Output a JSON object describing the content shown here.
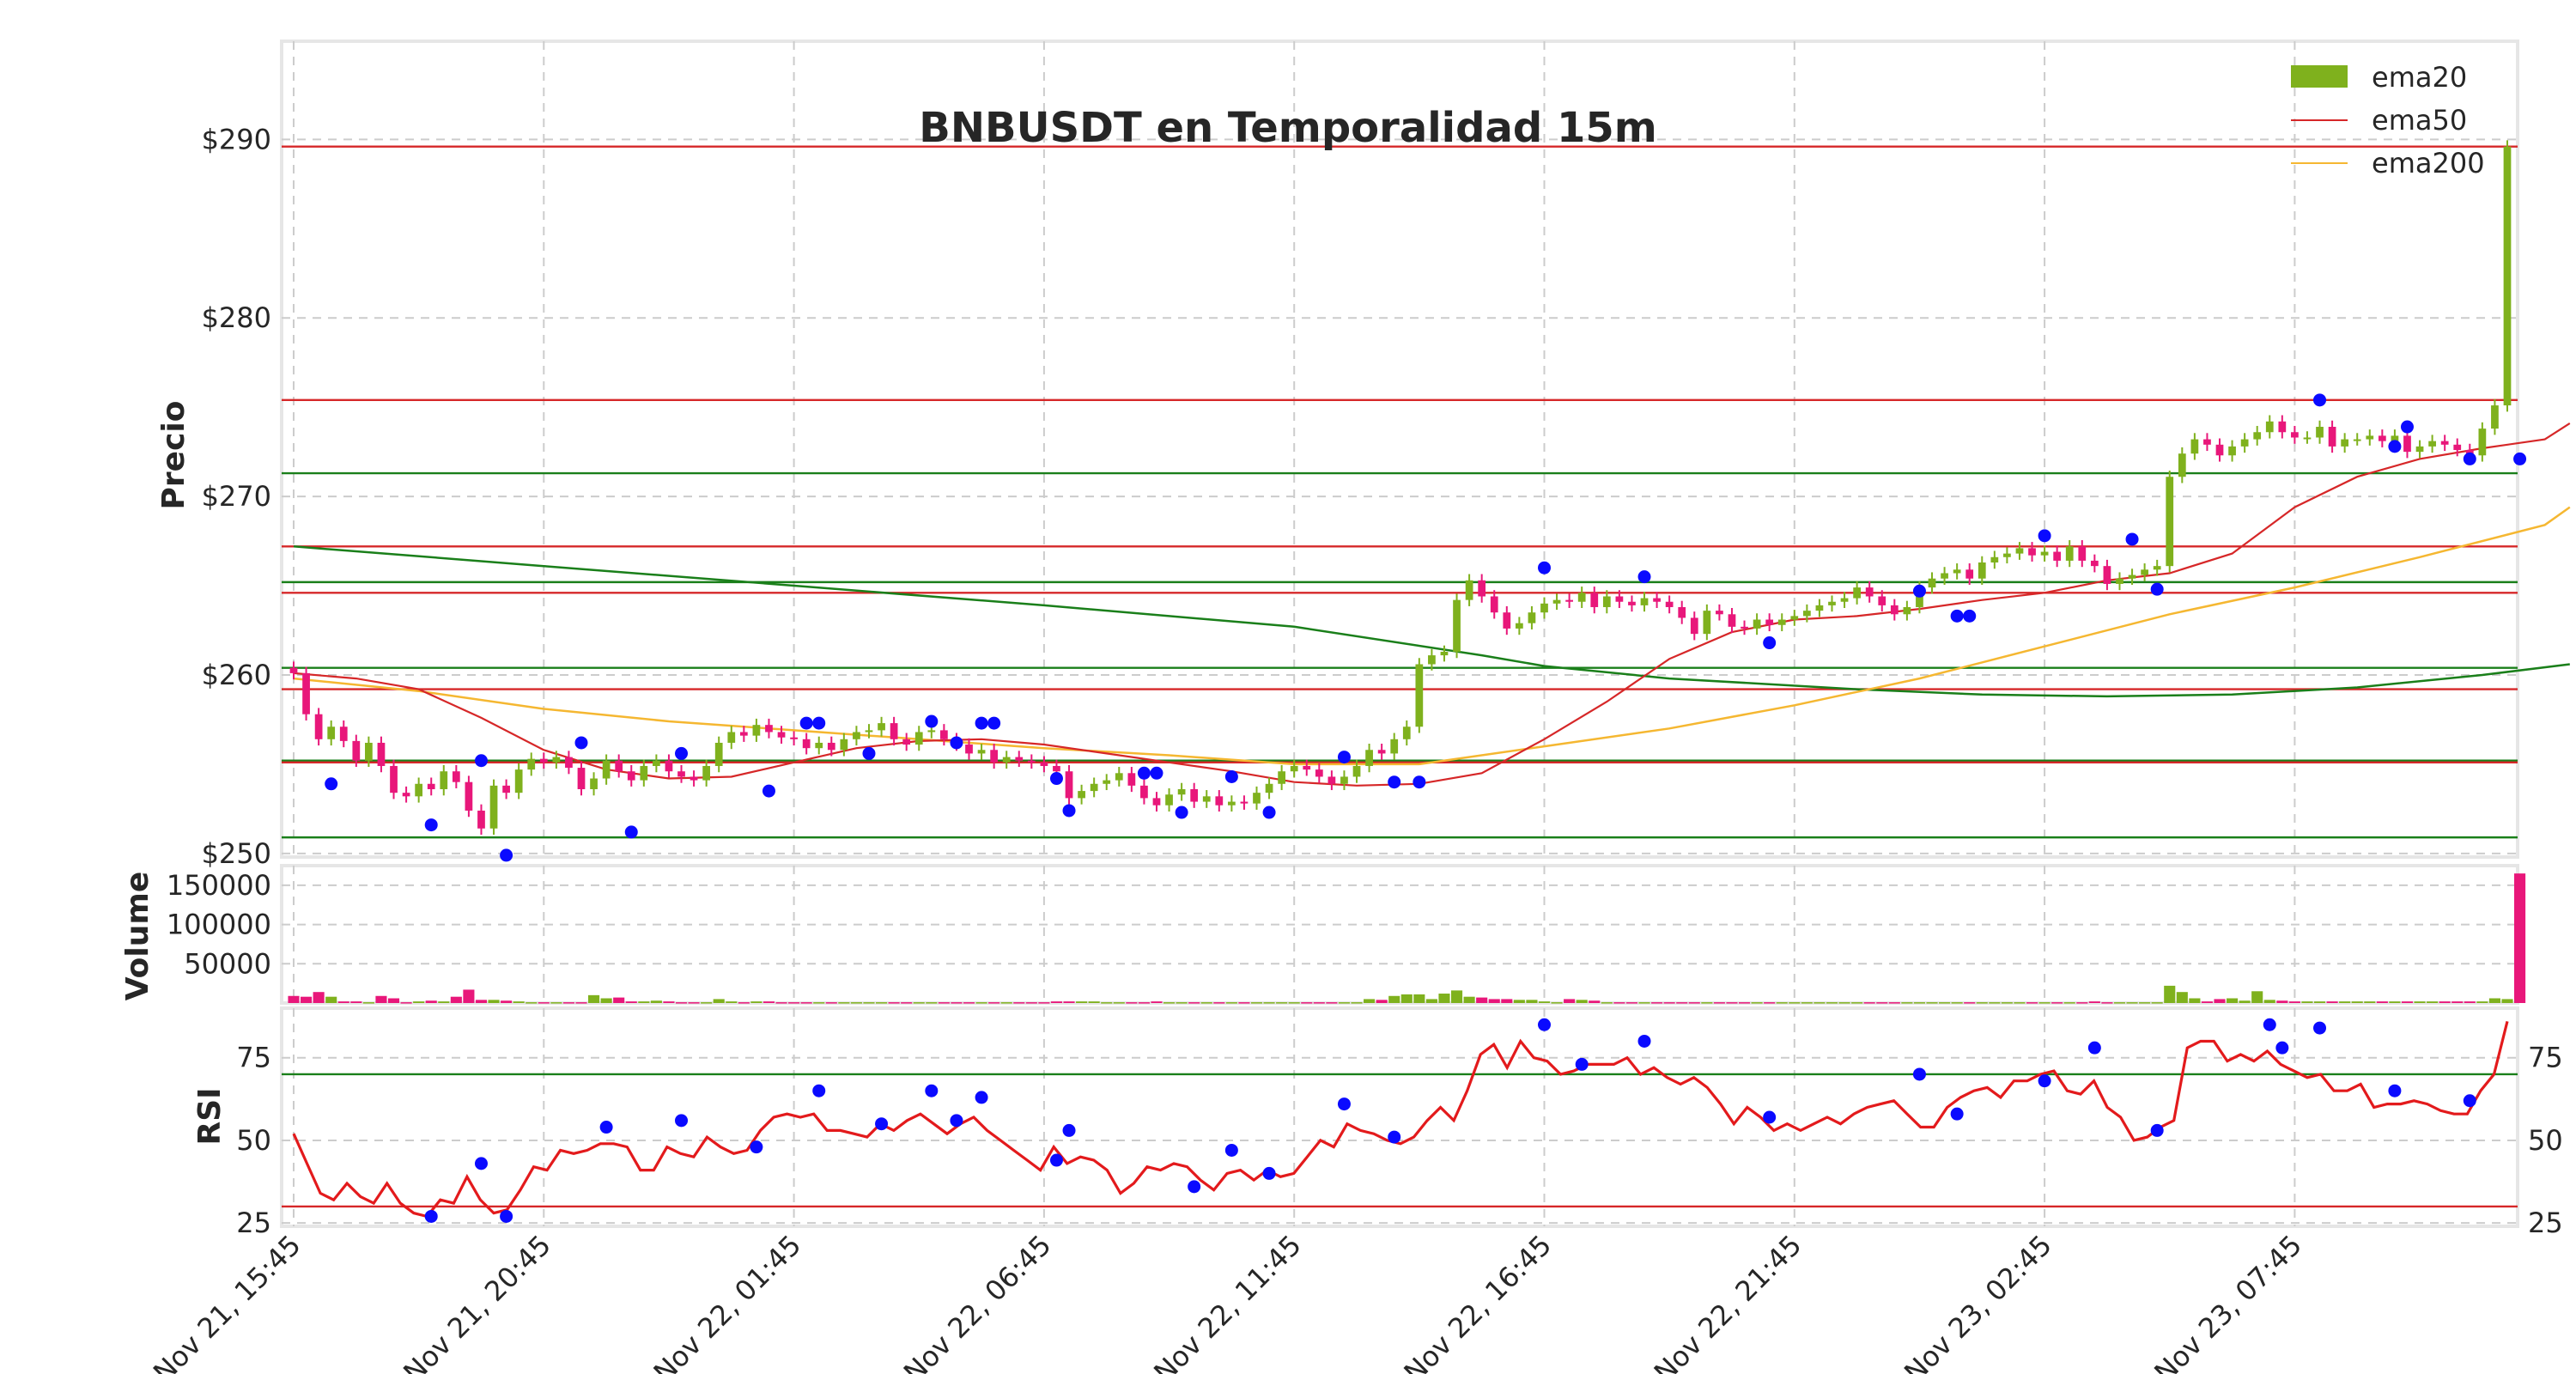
{
  "chart_data": {
    "type": "candlestick",
    "title": "BNBUSDT en Temporalidad 15m",
    "interval_minutes": 15,
    "x_tick_labels": [
      "Nov 21, 15:45",
      "Nov 21, 20:45",
      "Nov 22, 01:45",
      "Nov 22, 06:45",
      "Nov 22, 11:45",
      "Nov 22, 16:45",
      "Nov 22, 21:45",
      "Nov 23, 02:45",
      "Nov 23, 07:45"
    ],
    "candles_per_tick": 20,
    "price_panel": {
      "ylabel": "Precio",
      "ylim": [
        249.8,
        295.5
      ],
      "yticks": [
        250,
        260,
        270,
        280,
        290
      ],
      "ytick_labels": [
        "$250",
        "$260",
        "$270",
        "$280",
        "$290"
      ],
      "closes": [
        260.1,
        257.8,
        256.4,
        257.1,
        256.3,
        255.2,
        256.2,
        254.9,
        253.4,
        253.2,
        253.9,
        253.6,
        254.6,
        254.0,
        252.4,
        251.4,
        253.8,
        253.4,
        254.7,
        255.3,
        255.1,
        255.4,
        254.8,
        253.6,
        254.2,
        255.2,
        254.6,
        254.1,
        254.9,
        255.2,
        254.6,
        254.3,
        254.1,
        254.9,
        256.2,
        256.8,
        256.6,
        257.2,
        256.8,
        256.5,
        256.4,
        255.9,
        256.2,
        255.8,
        256.4,
        256.8,
        256.9,
        257.3,
        256.4,
        256.1,
        256.8,
        256.9,
        256.4,
        256.1,
        255.6,
        255.8,
        255.1,
        255.4,
        255.2,
        255.1,
        254.9,
        254.6,
        253.1,
        253.5,
        253.9,
        254.1,
        254.5,
        253.8,
        253.1,
        252.7,
        253.3,
        253.6,
        252.9,
        253.2,
        252.7,
        252.9,
        252.8,
        253.4,
        253.9,
        254.6,
        254.9,
        254.7,
        254.3,
        253.9,
        254.3,
        254.9,
        255.8,
        255.6,
        256.4,
        257.1,
        260.6,
        261.1,
        261.3,
        264.2,
        265.3,
        264.4,
        263.5,
        262.6,
        262.9,
        263.5,
        264.0,
        264.2,
        264.1,
        264.6,
        263.8,
        264.4,
        264.1,
        263.9,
        264.3,
        264.1,
        263.8,
        263.2,
        262.3,
        263.6,
        263.4,
        262.7,
        262.6,
        263.1,
        262.8,
        263.1,
        263.3,
        263.6,
        263.9,
        264.1,
        264.3,
        264.9,
        264.4,
        263.9,
        263.4,
        263.8,
        264.9,
        265.4,
        265.7,
        265.9,
        265.4,
        266.3,
        266.6,
        266.8,
        267.1,
        266.7,
        266.9,
        266.4,
        267.2,
        266.4,
        266.1,
        265.1,
        265.4,
        265.6,
        265.9,
        266.1,
        271.1,
        272.4,
        273.2,
        272.9,
        272.3,
        272.8,
        273.2,
        273.6,
        274.2,
        273.6,
        273.3,
        273.3,
        273.9,
        272.8,
        273.2,
        273.2,
        273.4,
        273.1,
        273.4,
        272.5,
        272.8,
        273.1,
        272.9,
        272.6,
        272.3,
        273.8,
        275.1,
        289.6
      ],
      "ema20_last": 274.1,
      "ema50": [
        [
          0,
          260.1
        ],
        [
          5,
          259.8
        ],
        [
          10,
          259.2
        ],
        [
          15,
          257.6
        ],
        [
          20,
          255.8
        ],
        [
          25,
          254.7
        ],
        [
          30,
          254.2
        ],
        [
          35,
          254.3
        ],
        [
          40,
          255.1
        ],
        [
          45,
          255.9
        ],
        [
          50,
          256.3
        ],
        [
          55,
          256.4
        ],
        [
          60,
          256.1
        ],
        [
          65,
          255.6
        ],
        [
          70,
          255.1
        ],
        [
          75,
          254.6
        ],
        [
          80,
          254.0
        ],
        [
          85,
          253.8
        ],
        [
          90,
          253.9
        ],
        [
          95,
          254.5
        ],
        [
          100,
          256.4
        ],
        [
          105,
          258.5
        ],
        [
          110,
          260.9
        ],
        [
          115,
          262.4
        ],
        [
          120,
          263.1
        ],
        [
          125,
          263.3
        ],
        [
          130,
          263.7
        ],
        [
          135,
          264.2
        ],
        [
          140,
          264.6
        ],
        [
          145,
          265.3
        ],
        [
          150,
          265.7
        ],
        [
          155,
          266.8
        ],
        [
          160,
          269.4
        ],
        [
          165,
          271.1
        ],
        [
          170,
          272.1
        ],
        [
          175,
          272.7
        ],
        [
          180,
          273.2
        ],
        [
          182,
          274.1
        ]
      ],
      "ema200": [
        [
          0,
          259.8
        ],
        [
          10,
          259.1
        ],
        [
          20,
          258.1
        ],
        [
          30,
          257.4
        ],
        [
          40,
          256.9
        ],
        [
          50,
          256.4
        ],
        [
          60,
          255.9
        ],
        [
          70,
          255.5
        ],
        [
          80,
          255.0
        ],
        [
          90,
          255.0
        ],
        [
          100,
          256.0
        ],
        [
          110,
          257.0
        ],
        [
          120,
          258.3
        ],
        [
          130,
          259.8
        ],
        [
          140,
          261.6
        ],
        [
          150,
          263.4
        ],
        [
          160,
          264.9
        ],
        [
          170,
          266.6
        ],
        [
          180,
          268.4
        ],
        [
          182,
          269.4
        ]
      ],
      "green_curve": [
        [
          0,
          267.2
        ],
        [
          20,
          266.1
        ],
        [
          40,
          265.0
        ],
        [
          60,
          263.9
        ],
        [
          80,
          262.7
        ],
        [
          95,
          261.1
        ],
        [
          100,
          260.5
        ],
        [
          110,
          259.8
        ],
        [
          125,
          259.2
        ],
        [
          135,
          258.9
        ],
        [
          145,
          258.8
        ],
        [
          155,
          258.9
        ],
        [
          165,
          259.3
        ],
        [
          175,
          260.0
        ],
        [
          182,
          260.6
        ]
      ],
      "horizontal_lines": [
        {
          "value": 289.6,
          "color": "#d62728"
        },
        {
          "value": 275.4,
          "color": "#d62728"
        },
        {
          "value": 271.3,
          "color": "#1a7f1a"
        },
        {
          "value": 267.2,
          "color": "#d62728"
        },
        {
          "value": 265.2,
          "color": "#1a7f1a"
        },
        {
          "value": 264.6,
          "color": "#d62728"
        },
        {
          "value": 260.4,
          "color": "#1a7f1a"
        },
        {
          "value": 259.2,
          "color": "#d62728"
        },
        {
          "value": 255.2,
          "color": "#1a7f1a"
        },
        {
          "value": 255.1,
          "color": "#d62728"
        },
        {
          "value": 250.9,
          "color": "#1a7f1a"
        }
      ],
      "pivot_points": [
        [
          3,
          253.9
        ],
        [
          11,
          251.6
        ],
        [
          15,
          255.2
        ],
        [
          17,
          249.9
        ],
        [
          23,
          256.2
        ],
        [
          27,
          251.2
        ],
        [
          31,
          255.6
        ],
        [
          38,
          253.5
        ],
        [
          41,
          257.3
        ],
        [
          42,
          257.3
        ],
        [
          46,
          255.6
        ],
        [
          51,
          257.4
        ],
        [
          53,
          256.2
        ],
        [
          55,
          257.3
        ],
        [
          56,
          257.3
        ],
        [
          61,
          254.2
        ],
        [
          62,
          252.4
        ],
        [
          68,
          254.5
        ],
        [
          69,
          254.5
        ],
        [
          71,
          252.3
        ],
        [
          75,
          254.3
        ],
        [
          78,
          252.3
        ],
        [
          84,
          255.4
        ],
        [
          88,
          254.0
        ],
        [
          90,
          254.0
        ],
        [
          100,
          266.0
        ],
        [
          108,
          265.5
        ],
        [
          118,
          261.8
        ],
        [
          130,
          264.7
        ],
        [
          133,
          263.3
        ],
        [
          134,
          263.3
        ],
        [
          140,
          267.8
        ],
        [
          147,
          267.6
        ],
        [
          149,
          264.8
        ],
        [
          162,
          275.4
        ],
        [
          168,
          272.8
        ],
        [
          169,
          273.9
        ],
        [
          174,
          272.1
        ],
        [
          178,
          272.1
        ]
      ]
    },
    "volume_panel": {
      "ylabel": "Volume",
      "yticks": [
        50000,
        100000,
        150000
      ],
      "ylim": [
        0,
        175000
      ],
      "values": [
        9000,
        8000,
        14000,
        8000,
        2000,
        2000,
        1000,
        9000,
        6000,
        1000,
        2000,
        3000,
        2000,
        8000,
        17000,
        4000,
        4000,
        3000,
        2000,
        1000,
        1000,
        1000,
        1000,
        1000,
        10000,
        6000,
        7000,
        2000,
        2000,
        3000,
        2000,
        1000,
        1000,
        1000,
        5000,
        2000,
        1000,
        2000,
        2000,
        1000,
        1000,
        1000,
        1000,
        1000,
        1000,
        1000,
        1000,
        1000,
        1000,
        1000,
        1000,
        1000,
        1000,
        1000,
        1000,
        1000,
        1000,
        1000,
        1000,
        1000,
        1000,
        2000,
        2000,
        2000,
        2000,
        1000,
        1000,
        1000,
        1000,
        2000,
        1000,
        1000,
        1000,
        1000,
        1000,
        1000,
        1000,
        1000,
        1000,
        1000,
        1000,
        1000,
        1000,
        1000,
        1000,
        1000,
        5000,
        4000,
        9000,
        11000,
        11000,
        5000,
        12000,
        16000,
        8000,
        7000,
        5000,
        5000,
        4000,
        4000,
        2000,
        1000,
        5000,
        4000,
        3000,
        1000,
        1000,
        1000,
        1000,
        1000,
        1000,
        1000,
        1000,
        1000,
        1000,
        1000,
        1000,
        1000,
        1000,
        1000,
        1000,
        1000,
        1000,
        1000,
        1000,
        1000,
        1000,
        1000,
        1000,
        1000,
        1000,
        1000,
        1000,
        1000,
        1000,
        1000,
        1000,
        1000,
        1000,
        1000,
        1000,
        1000,
        1000,
        1000,
        2000,
        1000,
        1000,
        1000,
        1000,
        1000,
        22000,
        14000,
        6000,
        2000,
        5000,
        6000,
        3000,
        15000,
        4000,
        3000,
        2000,
        2000,
        2000,
        2000,
        2000,
        2000,
        2000,
        2000,
        2000,
        2000,
        2000,
        2000,
        2000,
        2000,
        2000,
        2000,
        6000,
        5000,
        165000
      ]
    },
    "rsi_panel": {
      "ylabel": "RSI",
      "yticks": [
        25,
        50,
        75
      ],
      "ylim": [
        24,
        90
      ],
      "upper_line": 70,
      "lower_line": 30,
      "values": [
        52,
        43,
        34,
        32,
        37,
        33,
        31,
        37,
        31,
        28,
        27,
        32,
        31,
        39,
        32,
        28,
        29,
        35,
        42,
        41,
        47,
        46,
        47,
        49,
        49,
        48,
        41,
        41,
        48,
        46,
        45,
        51,
        48,
        46,
        47,
        53,
        57,
        58,
        57,
        58,
        53,
        53,
        52,
        51,
        55,
        53,
        56,
        58,
        55,
        52,
        55,
        57,
        53,
        50,
        47,
        44,
        41,
        48,
        43,
        45,
        44,
        41,
        34,
        37,
        42,
        41,
        43,
        42,
        38,
        35,
        40,
        41,
        38,
        41,
        39,
        40,
        45,
        50,
        48,
        55,
        53,
        52,
        50,
        49,
        51,
        56,
        60,
        56,
        65,
        76,
        79,
        72,
        80,
        75,
        74,
        70,
        71,
        73,
        73,
        73,
        75,
        70,
        72,
        69,
        67,
        69,
        66,
        61,
        55,
        60,
        57,
        53,
        55,
        53,
        55,
        57,
        55,
        58,
        60,
        61,
        62,
        58,
        54,
        54,
        60,
        63,
        65,
        66,
        63,
        68,
        68,
        70,
        71,
        65,
        64,
        68,
        60,
        57,
        50,
        51,
        54,
        56,
        78,
        80,
        80,
        74,
        76,
        74,
        77,
        73,
        71,
        69,
        70,
        65,
        65,
        67,
        60,
        61,
        61,
        62,
        61,
        59,
        58,
        58,
        65,
        70,
        86
      ],
      "pivot_points": [
        [
          11,
          27
        ],
        [
          15,
          43
        ],
        [
          17,
          27
        ],
        [
          25,
          54
        ],
        [
          31,
          56
        ],
        [
          37,
          48
        ],
        [
          42,
          65
        ],
        [
          47,
          55
        ],
        [
          51,
          65
        ],
        [
          53,
          56
        ],
        [
          55,
          63
        ],
        [
          61,
          44
        ],
        [
          62,
          53
        ],
        [
          72,
          36
        ],
        [
          75,
          47
        ],
        [
          78,
          40
        ],
        [
          84,
          61
        ],
        [
          88,
          51
        ],
        [
          100,
          85
        ],
        [
          103,
          73
        ],
        [
          108,
          80
        ],
        [
          118,
          57
        ],
        [
          130,
          70
        ],
        [
          133,
          58
        ],
        [
          140,
          68
        ],
        [
          144,
          78
        ],
        [
          149,
          53
        ],
        [
          158,
          85
        ],
        [
          159,
          78
        ],
        [
          162,
          84
        ],
        [
          168,
          65
        ],
        [
          174,
          62
        ]
      ],
      "right_ticks": [
        25,
        50,
        75
      ]
    },
    "legend": {
      "position": "top-right",
      "entries": [
        "ema20",
        "ema50",
        "ema200"
      ]
    },
    "colors": {
      "up": "#7fb11d",
      "down": "#e8177a",
      "ema20": "#7fb11d",
      "ema50": "#d62728",
      "ema200": "#f5b731",
      "rsi": "#e31a1c",
      "pivot": "#0a0aff"
    },
    "grid": true
  }
}
